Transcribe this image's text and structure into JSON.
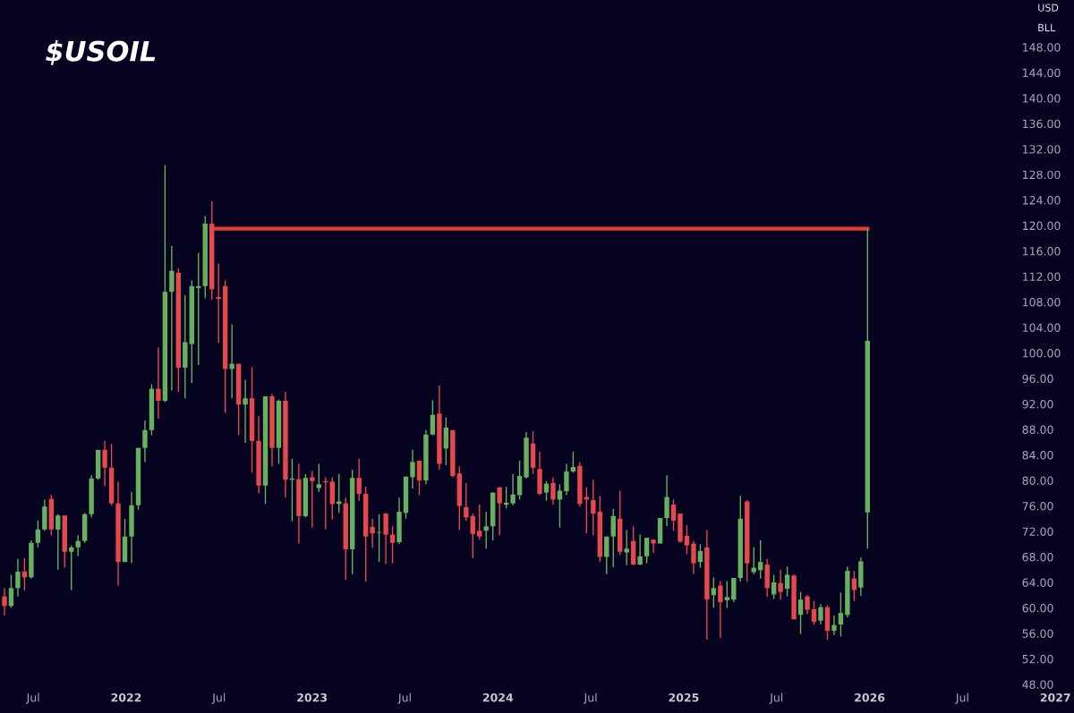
{
  "chart_data": {
    "type": "candlestick",
    "title": "$USOIL",
    "annotations": [
      "USD",
      "BLL"
    ],
    "colors": [
      "#e5484d",
      "#66b05f",
      "#66b05f",
      "#e5484d",
      "#66b05f",
      "#66b05f",
      "#66b05f",
      "#e5484d",
      "#66b05f",
      "#e5484d",
      "#66b05f",
      "#66b05f",
      "#66b05f",
      "#66b05f",
      "#66b05f",
      "#e5484d",
      "#e5484d",
      "#e5484d",
      "#66b05f",
      "#66b05f",
      "#66b05f",
      "#66b05f",
      "#66b05f",
      "#e5484d",
      "#66b05f",
      "#66b05f",
      "#e5484d",
      "#66b05f",
      "#66b05f",
      "#66b05f",
      "#66b05f",
      "#e5484d",
      "#e5484d",
      "#e5484d",
      "#66b05f",
      "#e5484d",
      "#66b05f",
      "#e5484d",
      "#e5484d",
      "#66b05f",
      "#e5484d",
      "#66b05f",
      "#e5484d",
      "#66b05f",
      "#e5484d",
      "#66b05f",
      "#e5484d",
      "#66b05f",
      "#e5484d",
      "#e5484d",
      "#66b05f",
      "#e5484d",
      "#66b05f",
      "#e5484d",
      "#e5484d",
      "#e5484d",
      "#66b05f",
      "#e5484d",
      "#e5484d",
      "#66b05f",
      "#66b05f",
      "#66b05f",
      "#e5484d",
      "#66b05f",
      "#66b05f",
      "#e5484d",
      "#66b05f",
      "#e5484d",
      "#e5484d",
      "#e5484d",
      "#e5484d",
      "#e5484d",
      "#66b05f",
      "#66b05f",
      "#e5484d",
      "#66b05f",
      "#66b05f",
      "#66b05f",
      "#66b05f",
      "#e5484d",
      "#e5484d",
      "#66b05f",
      "#e5484d",
      "#66b05f",
      "#66b05f",
      "#66b05f",
      "#e5484d",
      "#e5484d",
      "#e5484d",
      "#e5484d",
      "#66b05f",
      "#66b05f",
      "#e5484d",
      "#66b05f",
      "#e5484d",
      "#66b05f",
      "#66b05f",
      "#e5484d",
      "#66b05f",
      "#66b05f",
      "#e5484d",
      "#e5484d",
      "#e5484d",
      "#e5484d",
      "#66b05f",
      "#e5484d",
      "#66b05f",
      "#e5484d",
      "#66b05f",
      "#66b05f",
      "#66b05f",
      "#e5484d",
      "#66b05f",
      "#66b05f",
      "#e5484d",
      "#66b05f",
      "#e5484d",
      "#66b05f",
      "#e5484d",
      "#66b05f",
      "#e5484d",
      "#e5484d",
      "#66b05f",
      "#e5484d",
      "#66b05f",
      "#66b05f",
      "#66b05f",
      "#e5484d",
      "#66b05f",
      "#66b05f"
    ],
    "x": [
      2021.345,
      2021.381,
      2021.417,
      2021.453,
      2021.489,
      2021.525,
      2021.561,
      2021.597,
      2021.633,
      2021.669,
      2021.705,
      2021.741,
      2021.777,
      2021.813,
      2021.849,
      2021.885,
      2021.921,
      2021.957,
      2021.993,
      2022.029,
      2022.065,
      2022.101,
      2022.137,
      2022.173,
      2022.209,
      2022.245,
      2022.281,
      2022.317,
      2022.353,
      2022.389,
      2022.425,
      2022.461,
      2022.497,
      2022.533,
      2022.569,
      2022.605,
      2022.641,
      2022.677,
      2022.713,
      2022.749,
      2022.785,
      2022.821,
      2022.857,
      2022.893,
      2022.929,
      2022.965,
      2023.001,
      2023.037,
      2023.073,
      2023.109,
      2023.145,
      2023.181,
      2023.217,
      2023.253,
      2023.289,
      2023.325,
      2023.361,
      2023.397,
      2023.433,
      2023.469,
      2023.505,
      2023.541,
      2023.577,
      2023.613,
      2023.649,
      2023.685,
      2023.721,
      2023.757,
      2023.793,
      2023.829,
      2023.865,
      2023.901,
      2023.937,
      2023.973,
      2024.009,
      2024.045,
      2024.081,
      2024.117,
      2024.153,
      2024.189,
      2024.225,
      2024.261,
      2024.297,
      2024.333,
      2024.369,
      2024.405,
      2024.441,
      2024.477,
      2024.513,
      2024.549,
      2024.585,
      2024.621,
      2024.657,
      2024.693,
      2024.729,
      2024.765,
      2024.801,
      2024.837,
      2024.873,
      2024.909,
      2024.945,
      2024.981,
      2025.017,
      2025.053,
      2025.089,
      2025.125,
      2025.161,
      2025.197,
      2025.233,
      2025.269,
      2025.305,
      2025.341,
      2025.377,
      2025.413,
      2025.449,
      2025.485,
      2025.521,
      2025.557,
      2025.593,
      2025.629,
      2025.665,
      2025.701,
      2025.737,
      2025.773,
      2025.809,
      2025.845,
      2025.881,
      2025.917,
      2025.953,
      2025.989
    ],
    "ohlc": [
      [
        61.8,
        63.1,
        58.8,
        60.3
      ],
      [
        60.3,
        65.2,
        60.0,
        63.1
      ],
      [
        63.1,
        67.7,
        61.8,
        65.7
      ],
      [
        65.7,
        67.8,
        62.7,
        64.8
      ],
      [
        64.8,
        70.6,
        64.6,
        70.2
      ],
      [
        70.2,
        73.7,
        69.5,
        72.3
      ],
      [
        72.3,
        77.0,
        72.1,
        75.9
      ],
      [
        77.1,
        77.7,
        71.4,
        72.3
      ],
      [
        72.3,
        74.7,
        66.0,
        74.5
      ],
      [
        74.5,
        74.5,
        66.3,
        68.8
      ],
      [
        68.8,
        69.8,
        62.8,
        69.5
      ],
      [
        69.5,
        71.4,
        68.1,
        70.5
      ],
      [
        70.5,
        74.9,
        70.2,
        74.7
      ],
      [
        74.7,
        80.8,
        74.2,
        80.3
      ],
      [
        80.3,
        84.8,
        80.1,
        84.8
      ],
      [
        84.8,
        86.2,
        79.1,
        82.0
      ],
      [
        82.0,
        85.7,
        76.1,
        76.4
      ],
      [
        76.4,
        79.8,
        63.5,
        67.2
      ],
      [
        67.2,
        74.0,
        67.2,
        71.2
      ],
      [
        71.2,
        78.2,
        67.0,
        76.1
      ],
      [
        76.1,
        85.1,
        75.4,
        85.1
      ],
      [
        85.1,
        89.4,
        82.9,
        87.9
      ],
      [
        87.9,
        95.1,
        87.1,
        94.4
      ],
      [
        94.4,
        100.9,
        89.7,
        92.5
      ],
      [
        92.5,
        129.5,
        92.3,
        109.6
      ],
      [
        109.6,
        116.8,
        94.1,
        112.9
      ],
      [
        112.6,
        113.3,
        93.9,
        97.7
      ],
      [
        97.7,
        109.1,
        92.9,
        101.7
      ],
      [
        101.4,
        111.4,
        95.3,
        110.5
      ],
      [
        110.2,
        115.7,
        98.1,
        110.5
      ],
      [
        110.5,
        121.5,
        108.6,
        120.3
      ],
      [
        120.3,
        123.8,
        108.4,
        110.0
      ],
      [
        108.8,
        114.0,
        101.6,
        108.5
      ],
      [
        110.5,
        111.4,
        90.6,
        97.5
      ],
      [
        97.5,
        104.5,
        92.9,
        98.3
      ],
      [
        98.3,
        98.3,
        87.1,
        91.9
      ],
      [
        91.9,
        95.8,
        85.9,
        92.9
      ],
      [
        92.9,
        97.8,
        81.2,
        86.2
      ],
      [
        86.2,
        90.1,
        78.0,
        79.2
      ],
      [
        79.2,
        93.2,
        76.3,
        93.2
      ],
      [
        93.2,
        93.6,
        82.2,
        85.1
      ],
      [
        85.1,
        92.7,
        82.6,
        92.5
      ],
      [
        92.5,
        93.9,
        77.3,
        80.1
      ],
      [
        80.1,
        83.4,
        73.6,
        80.3
      ],
      [
        80.2,
        82.6,
        70.1,
        74.4
      ],
      [
        74.4,
        81.0,
        74.2,
        80.4
      ],
      [
        80.5,
        81.5,
        72.6,
        79.9
      ],
      [
        78.8,
        82.6,
        78.2,
        79.4
      ],
      [
        79.9,
        80.5,
        72.3,
        79.7
      ],
      [
        79.8,
        80.5,
        73.9,
        76.3
      ],
      [
        76.3,
        81.0,
        74.9,
        76.7
      ],
      [
        76.4,
        77.3,
        64.4,
        69.2
      ],
      [
        69.2,
        81.7,
        65.3,
        80.4
      ],
      [
        80.4,
        83.4,
        76.8,
        77.9
      ],
      [
        77.9,
        79.0,
        64.1,
        71.2
      ],
      [
        72.7,
        74.0,
        69.4,
        71.7
      ],
      [
        71.8,
        74.7,
        67.2,
        71.9
      ],
      [
        74.8,
        74.9,
        66.9,
        71.5
      ],
      [
        71.5,
        72.8,
        67.0,
        70.2
      ],
      [
        70.3,
        77.3,
        70.0,
        75.1
      ],
      [
        74.9,
        80.6,
        74.0,
        80.6
      ],
      [
        80.5,
        84.8,
        78.7,
        82.9
      ],
      [
        83.1,
        83.1,
        77.7,
        80.0
      ],
      [
        80.0,
        87.9,
        79.4,
        87.2
      ],
      [
        87.2,
        92.6,
        87.1,
        90.3
      ],
      [
        90.5,
        94.9,
        81.7,
        82.6
      ],
      [
        85.0,
        89.9,
        82.4,
        88.3
      ],
      [
        87.9,
        87.9,
        80.5,
        80.7
      ],
      [
        81.1,
        82.2,
        72.2,
        76.0
      ],
      [
        75.8,
        79.6,
        73.7,
        74.2
      ],
      [
        74.4,
        74.8,
        67.8,
        71.6
      ],
      [
        72.1,
        76.2,
        70.7,
        71.2
      ],
      [
        72.1,
        75.1,
        69.3,
        72.8
      ],
      [
        72.8,
        78.1,
        70.6,
        78.1
      ],
      [
        78.9,
        79.0,
        71.4,
        76.4
      ],
      [
        76.2,
        79.0,
        75.6,
        76.5
      ],
      [
        76.4,
        81.0,
        76.1,
        77.8
      ],
      [
        77.7,
        83.1,
        77.0,
        80.7
      ],
      [
        80.5,
        87.6,
        80.3,
        86.7
      ],
      [
        85.8,
        87.7,
        81.0,
        82.0
      ],
      [
        81.8,
        84.5,
        77.7,
        77.9
      ],
      [
        78.1,
        79.9,
        76.8,
        79.5
      ],
      [
        79.6,
        80.5,
        76.2,
        77.0
      ],
      [
        77.0,
        79.4,
        72.6,
        78.4
      ],
      [
        78.3,
        82.6,
        77.7,
        81.4
      ],
      [
        81.4,
        84.5,
        81.2,
        82.1
      ],
      [
        82.3,
        82.9,
        75.9,
        76.3
      ],
      [
        77.4,
        78.9,
        71.7,
        77.0
      ],
      [
        76.9,
        80.1,
        71.4,
        74.8
      ],
      [
        75.1,
        77.6,
        67.2,
        68.0
      ],
      [
        68.0,
        71.2,
        65.3,
        71.2
      ],
      [
        71.2,
        75.5,
        66.4,
        74.4
      ],
      [
        74.0,
        78.4,
        68.3,
        68.8
      ],
      [
        68.7,
        72.2,
        66.7,
        69.3
      ],
      [
        70.5,
        72.8,
        66.7,
        66.8
      ],
      [
        66.8,
        71.5,
        66.7,
        68.1
      ],
      [
        68.1,
        71.0,
        67.0,
        71.0
      ],
      [
        70.7,
        70.7,
        68.6,
        70.1
      ],
      [
        70.1,
        74.1,
        70.1,
        74.1
      ],
      [
        74.1,
        80.8,
        72.8,
        77.4
      ],
      [
        76.2,
        77.0,
        72.1,
        73.7
      ],
      [
        74.8,
        74.8,
        70.2,
        70.4
      ],
      [
        71.3,
        73.0,
        68.4,
        69.8
      ],
      [
        70.1,
        70.5,
        65.3,
        67.0
      ],
      [
        67.2,
        70.0,
        66.3,
        68.9
      ],
      [
        69.5,
        72.2,
        55.0,
        61.3
      ],
      [
        62.0,
        64.8,
        60.0,
        63.1
      ],
      [
        63.5,
        64.2,
        55.3,
        60.9
      ],
      [
        61.2,
        64.2,
        60.0,
        61.7
      ],
      [
        61.3,
        64.7,
        60.9,
        64.7
      ],
      [
        64.7,
        77.6,
        64.1,
        74.0
      ],
      [
        76.7,
        76.9,
        64.1,
        67.0
      ],
      [
        65.6,
        69.5,
        65.3,
        66.3
      ],
      [
        65.9,
        70.6,
        64.6,
        67.2
      ],
      [
        66.8,
        67.7,
        61.8,
        63.1
      ],
      [
        62.1,
        65.2,
        61.4,
        64.0
      ],
      [
        63.9,
        66.0,
        61.3,
        62.5
      ],
      [
        63.0,
        66.5,
        61.8,
        65.2
      ],
      [
        65.1,
        65.2,
        58.2,
        58.2
      ],
      [
        58.9,
        62.5,
        55.9,
        61.3
      ],
      [
        61.8,
        62.0,
        59.0,
        59.7
      ],
      [
        59.8,
        61.1,
        57.4,
        57.8
      ],
      [
        58.0,
        60.6,
        57.4,
        60.1
      ],
      [
        60.1,
        60.4,
        55.0,
        56.4
      ],
      [
        56.4,
        58.8,
        55.7,
        57.3
      ],
      [
        57.4,
        62.4,
        55.5,
        59.2
      ],
      [
        58.9,
        66.5,
        58.5,
        65.8
      ],
      [
        64.6,
        65.8,
        61.1,
        62.8
      ],
      [
        63.2,
        67.9,
        61.9,
        67.3
      ],
      [
        75.0,
        119.5,
        69.3,
        101.9
      ]
    ],
    "series": [
      {
        "type": "line",
        "x": [
          2022.475,
          2025.989
        ],
        "values": [
          119.5,
          119.5
        ],
        "color": "#e53935"
      }
    ],
    "xlim": [
      2021.321,
      2027.1
    ],
    "xticks": [
      {
        "value": 2021.5,
        "label": "Jul"
      },
      2022,
      {
        "value": 2022.5,
        "label": "Jul"
      },
      2023,
      {
        "value": 2023.5,
        "label": "Jul"
      },
      2024,
      {
        "value": 2024.5,
        "label": "Jul"
      },
      2025,
      {
        "value": 2025.5,
        "label": "Jul"
      },
      2026,
      {
        "value": 2026.5,
        "label": "Jul"
      },
      2027
    ],
    "ylim": [
      43.5,
      155.4
    ],
    "yticks": [
      {
        "value": 48,
        "label": "48.00"
      },
      {
        "value": 52,
        "label": "52.00"
      },
      {
        "value": 56,
        "label": "56.00"
      },
      {
        "value": 60,
        "label": "60.00"
      },
      {
        "value": 64,
        "label": "64.00"
      },
      {
        "value": 68,
        "label": "68.00"
      },
      {
        "value": 72,
        "label": "72.00"
      },
      {
        "value": 76,
        "label": "76.00"
      },
      {
        "value": 80,
        "label": "80.00"
      },
      {
        "value": 84,
        "label": "84.00"
      },
      {
        "value": 88,
        "label": "88.00"
      },
      {
        "value": 92,
        "label": "92.00"
      },
      {
        "value": 96,
        "label": "96.00"
      },
      {
        "value": 100,
        "label": "100.00"
      },
      {
        "value": 104,
        "label": "104.00"
      },
      {
        "value": 108,
        "label": "108.00"
      },
      {
        "value": 112,
        "label": "112.00"
      },
      {
        "value": 116,
        "label": "116.00"
      },
      {
        "value": 120,
        "label": "120.00"
      },
      {
        "value": 124,
        "label": "124.00"
      },
      {
        "value": 128,
        "label": "128.00"
      },
      {
        "value": 132,
        "label": "132.00"
      },
      {
        "value": 136,
        "label": "136.00"
      },
      {
        "value": 140,
        "label": "140.00"
      },
      {
        "value": 144,
        "label": "144.00"
      },
      {
        "value": 148,
        "label": "148.00"
      }
    ]
  }
}
